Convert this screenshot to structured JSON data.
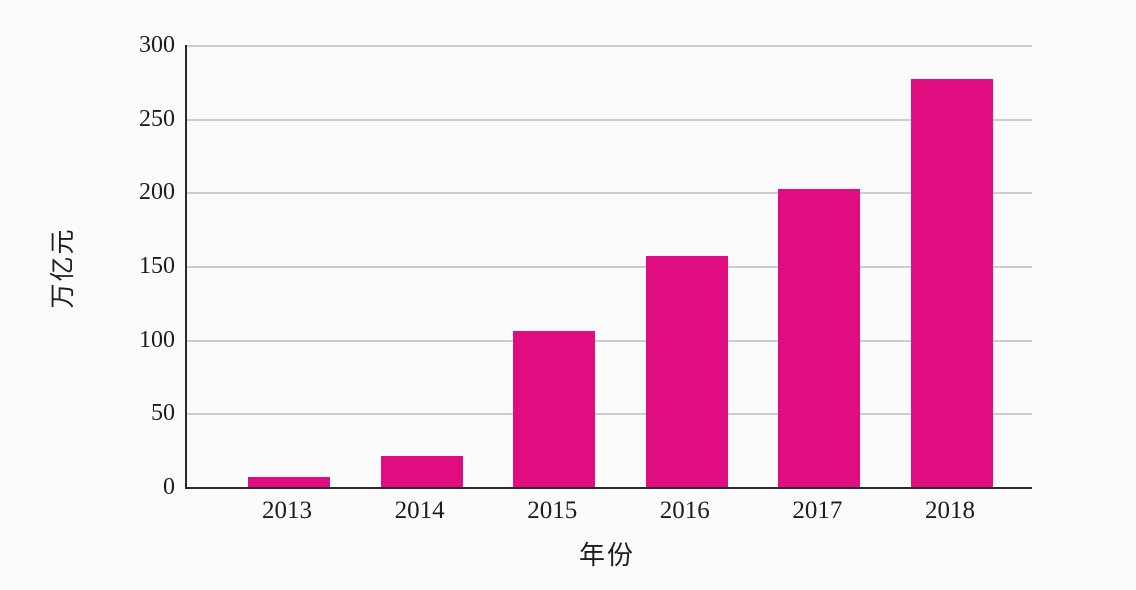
{
  "chart_data": {
    "type": "bar",
    "title": "",
    "categories": [
      "2013",
      "2014",
      "2015",
      "2016",
      "2017",
      "2018"
    ],
    "values": [
      7,
      21,
      106,
      157,
      202,
      277
    ],
    "xlabel": "年份",
    "ylabel": "万亿元",
    "ylim": [
      0,
      300
    ],
    "yticks": [
      0,
      50,
      100,
      150,
      200,
      250,
      300
    ],
    "grid": "horizontal",
    "legend_position": "none",
    "colors": {
      "bar": "#e00d80",
      "gridline": "#c9cdd6",
      "axis": "#2a2a2a",
      "text": "#1c1c1c",
      "background": "#fbfbfb"
    }
  }
}
